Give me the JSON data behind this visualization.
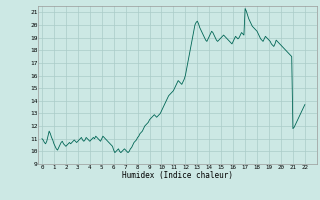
{
  "title": "",
  "xlabel": "Humidex (Indice chaleur)",
  "ylabel": "",
  "bg_color": "#cce8e4",
  "grid_color": "#aaccc8",
  "line_color": "#006655",
  "ylim": [
    9,
    21.5
  ],
  "xlim": [
    -0.3,
    23
  ],
  "yticks": [
    9,
    10,
    11,
    12,
    13,
    14,
    15,
    16,
    17,
    18,
    19,
    20,
    21
  ],
  "xticks": [
    0,
    1,
    2,
    3,
    4,
    5,
    6,
    7,
    8,
    9,
    10,
    11,
    12,
    13,
    14,
    15,
    16,
    17,
    18,
    19,
    20,
    21,
    22
  ],
  "x": [
    0,
    0.1,
    0.2,
    0.3,
    0.4,
    0.5,
    0.6,
    0.7,
    0.8,
    0.9,
    1.0,
    1.1,
    1.2,
    1.3,
    1.4,
    1.5,
    1.6,
    1.7,
    1.8,
    1.9,
    2.0,
    2.1,
    2.2,
    2.3,
    2.4,
    2.5,
    2.6,
    2.7,
    2.8,
    2.9,
    3.0,
    3.1,
    3.2,
    3.3,
    3.4,
    3.5,
    3.6,
    3.7,
    3.8,
    3.9,
    4.0,
    4.1,
    4.2,
    4.3,
    4.4,
    4.5,
    4.6,
    4.7,
    4.8,
    4.9,
    5.0,
    5.1,
    5.2,
    5.3,
    5.4,
    5.5,
    5.6,
    5.7,
    5.8,
    5.9,
    6.0,
    6.1,
    6.2,
    6.3,
    6.4,
    6.5,
    6.6,
    6.7,
    6.8,
    6.9,
    7.0,
    7.1,
    7.2,
    7.3,
    7.4,
    7.5,
    7.6,
    7.7,
    7.8,
    7.9,
    8.0,
    8.1,
    8.2,
    8.3,
    8.4,
    8.5,
    8.6,
    8.7,
    8.8,
    8.9,
    9.0,
    9.1,
    9.2,
    9.3,
    9.4,
    9.5,
    9.6,
    9.7,
    9.8,
    9.9,
    10.0,
    10.1,
    10.2,
    10.3,
    10.4,
    10.5,
    10.6,
    10.7,
    10.8,
    10.9,
    11.0,
    11.1,
    11.2,
    11.3,
    11.4,
    11.5,
    11.6,
    11.7,
    11.8,
    11.9,
    12.0,
    12.1,
    12.2,
    12.3,
    12.4,
    12.5,
    12.6,
    12.7,
    12.8,
    12.9,
    13.0,
    13.1,
    13.2,
    13.3,
    13.4,
    13.5,
    13.6,
    13.7,
    13.8,
    13.9,
    14.0,
    14.1,
    14.2,
    14.3,
    14.4,
    14.5,
    14.6,
    14.7,
    14.8,
    14.9,
    15.0,
    15.1,
    15.2,
    15.3,
    15.4,
    15.5,
    15.6,
    15.7,
    15.8,
    15.9,
    16.0,
    16.1,
    16.2,
    16.3,
    16.4,
    16.5,
    16.6,
    16.7,
    16.8,
    16.9,
    17.0,
    17.1,
    17.2,
    17.3,
    17.4,
    17.5,
    17.6,
    17.7,
    17.8,
    17.9,
    18.0,
    18.1,
    18.2,
    18.3,
    18.4,
    18.5,
    18.6,
    18.7,
    18.8,
    18.9,
    19.0,
    19.1,
    19.2,
    19.3,
    19.4,
    19.5,
    19.6,
    19.7,
    19.8,
    19.9,
    20.0,
    20.1,
    20.2,
    20.3,
    20.4,
    20.5,
    20.6,
    20.7,
    20.8,
    20.9,
    21.0,
    21.1,
    21.2,
    21.3,
    21.4,
    21.5,
    21.6,
    21.7,
    21.8,
    21.9,
    22.0
  ],
  "y": [
    11.0,
    10.9,
    10.7,
    10.6,
    10.8,
    11.2,
    11.6,
    11.4,
    11.1,
    10.9,
    10.6,
    10.4,
    10.2,
    10.1,
    10.3,
    10.5,
    10.7,
    10.8,
    10.6,
    10.5,
    10.4,
    10.5,
    10.6,
    10.7,
    10.6,
    10.7,
    10.8,
    10.9,
    10.8,
    10.7,
    10.8,
    10.9,
    11.0,
    11.1,
    10.9,
    10.8,
    10.9,
    11.1,
    11.0,
    10.9,
    10.8,
    10.9,
    11.0,
    11.1,
    11.0,
    11.2,
    11.1,
    11.0,
    10.9,
    10.8,
    11.0,
    11.2,
    11.1,
    11.0,
    10.9,
    10.8,
    10.7,
    10.6,
    10.5,
    10.4,
    10.1,
    9.9,
    10.0,
    10.1,
    10.2,
    10.0,
    9.9,
    10.0,
    10.1,
    10.2,
    10.1,
    10.0,
    9.9,
    10.0,
    10.2,
    10.3,
    10.5,
    10.7,
    10.8,
    10.9,
    11.1,
    11.2,
    11.4,
    11.5,
    11.6,
    11.8,
    12.0,
    12.1,
    12.2,
    12.3,
    12.5,
    12.6,
    12.7,
    12.8,
    12.9,
    12.8,
    12.7,
    12.8,
    12.9,
    13.0,
    13.2,
    13.4,
    13.6,
    13.8,
    14.0,
    14.2,
    14.4,
    14.5,
    14.6,
    14.7,
    14.8,
    15.0,
    15.2,
    15.4,
    15.6,
    15.5,
    15.4,
    15.3,
    15.5,
    15.7,
    16.0,
    16.5,
    17.0,
    17.5,
    18.0,
    18.5,
    19.0,
    19.5,
    20.0,
    20.2,
    20.3,
    20.1,
    19.8,
    19.6,
    19.4,
    19.2,
    19.0,
    18.8,
    18.7,
    18.9,
    19.1,
    19.3,
    19.5,
    19.4,
    19.2,
    19.0,
    18.8,
    18.7,
    18.8,
    18.9,
    19.0,
    19.1,
    19.2,
    19.1,
    19.0,
    18.9,
    18.8,
    18.7,
    18.6,
    18.5,
    18.7,
    18.9,
    19.1,
    19.0,
    18.9,
    19.0,
    19.2,
    19.4,
    19.3,
    19.2,
    21.3,
    21.1,
    20.8,
    20.5,
    20.3,
    20.1,
    19.9,
    19.8,
    19.7,
    19.6,
    19.5,
    19.3,
    19.1,
    18.9,
    18.8,
    18.7,
    18.9,
    19.1,
    19.0,
    18.9,
    18.8,
    18.7,
    18.5,
    18.4,
    18.3,
    18.5,
    18.8,
    18.7,
    18.6,
    18.5,
    18.4,
    18.3,
    18.2,
    18.1,
    18.0,
    17.9,
    17.8,
    17.7,
    17.6,
    17.5,
    11.8,
    11.9,
    12.1,
    12.3,
    12.5,
    12.7,
    12.9,
    13.1,
    13.3,
    13.5,
    13.7
  ]
}
